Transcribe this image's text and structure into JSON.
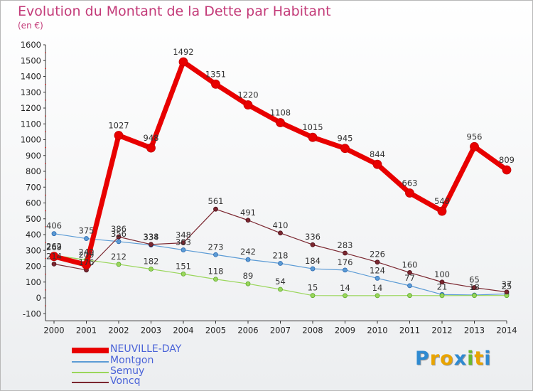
{
  "title": "Evolution du Montant de la Dette par Habitant",
  "subtitle": "(en €)",
  "logo": {
    "letters": [
      "P",
      "r",
      "o",
      "x",
      "i",
      "t",
      "i"
    ],
    "colors": [
      "#2f8ad1",
      "#e9a400",
      "#e9a400",
      "#2f8ad1",
      "#6ab92f",
      "#e9a400",
      "#2f8ad1"
    ]
  },
  "chart_data": {
    "type": "line",
    "title": "Evolution du Montant de la Dette par Habitant",
    "ylabel": "(en €)",
    "x": [
      2000,
      2001,
      2002,
      2003,
      2004,
      2005,
      2006,
      2007,
      2008,
      2009,
      2010,
      2011,
      2012,
      2013,
      2014
    ],
    "ylim": [
      -100,
      1600
    ],
    "yticks": [
      -100,
      0,
      100,
      200,
      300,
      400,
      500,
      600,
      700,
      800,
      900,
      1000,
      1100,
      1200,
      1300,
      1400,
      1500,
      1600
    ],
    "grid": false,
    "legend": "bottom-left",
    "series": [
      {
        "name": "NEUVILLE-DAY",
        "color": "#e80000",
        "values": [
          262,
          209,
          1027,
          948,
          1492,
          1351,
          1220,
          1108,
          1015,
          945,
          844,
          663,
          548,
          956,
          809
        ],
        "labels": [
          "262",
          "209",
          "1027",
          "948",
          "1492",
          "1351",
          "1220",
          "1108",
          "1015",
          "945",
          "844",
          "663",
          "548",
          "956",
          "809"
        ]
      },
      {
        "name": "Montgon",
        "color": "#5b9bd5",
        "values": [
          406,
          375,
          356,
          334,
          303,
          273,
          242,
          218,
          184,
          176,
          124,
          77,
          21,
          18,
          25
        ],
        "labels": [
          "406",
          "375",
          "356",
          "334",
          "303",
          "273",
          "242",
          "218",
          "184",
          "176",
          "124",
          "77",
          "21",
          "18",
          "25"
        ]
      },
      {
        "name": "Semuy",
        "color": "#9ad65b",
        "values": [
          269,
          240,
          212,
          182,
          151,
          118,
          89,
          54,
          15,
          14,
          14,
          15,
          14,
          15,
          15
        ],
        "labels": [
          "269",
          "240",
          "212",
          "182",
          "151",
          "118",
          "89",
          "54",
          "15",
          "14",
          "14",
          "",
          "",
          "",
          ""
        ]
      },
      {
        "name": "Voncq",
        "color": "#7b2730",
        "values": [
          214,
          176,
          386,
          338,
          348,
          561,
          491,
          410,
          336,
          283,
          226,
          160,
          100,
          65,
          37
        ],
        "labels": [
          "214",
          "176",
          "386",
          "338",
          "348",
          "561",
          "491",
          "410",
          "336",
          "283",
          "226",
          "160",
          "100",
          "65",
          "37"
        ]
      }
    ]
  }
}
